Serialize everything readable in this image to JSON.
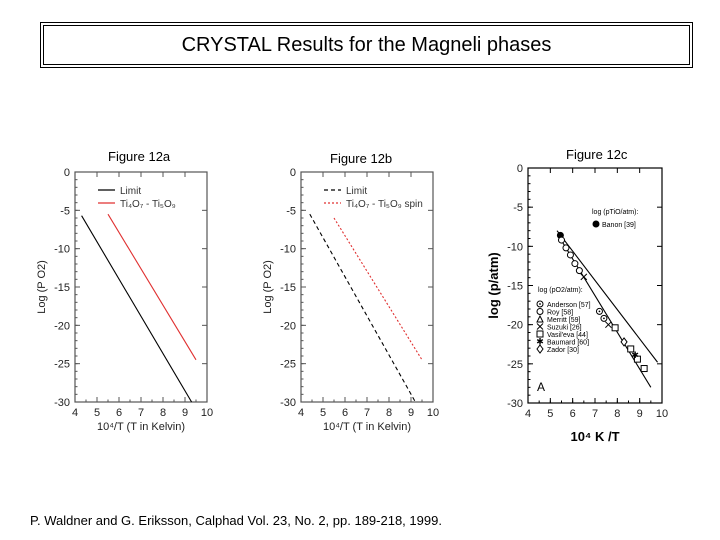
{
  "slide": {
    "title": "CRYSTAL Results for the Magneli phases",
    "fig_a_label": "Figure 12a",
    "fig_b_label": "Figure 12b",
    "fig_c_label": "Figure 12c",
    "caption": "P. Waldner and G. Eriksson, Calphad Vol. 23, No. 2, pp. 189-218, 1999."
  },
  "chart_data": [
    {
      "type": "line",
      "name": "Figure 12a",
      "xlabel": "10⁴/T (T in Kelvin)",
      "ylabel": "Log (P O2)",
      "xlim": [
        4,
        10
      ],
      "ylim": [
        -30,
        0
      ],
      "xticks": [
        "4",
        "5",
        "6",
        "7",
        "8",
        "9",
        "10"
      ],
      "yticks": [
        "0",
        "-5",
        "-10",
        "-15",
        "-20",
        "-25",
        "-30"
      ],
      "series": [
        {
          "name": "Limit",
          "legend": "Limit",
          "color": "#000000",
          "dash": "",
          "x": [
            4.3,
            9.3
          ],
          "y": [
            -5.7,
            -30
          ]
        },
        {
          "name": "Ti4O7 - Ti5O9",
          "legend": "Ti₄O₇ - Ti₅O₉",
          "color": "#e03030",
          "dash": "",
          "x": [
            5.5,
            9.5
          ],
          "y": [
            -5.5,
            -24.5
          ]
        }
      ]
    },
    {
      "type": "line",
      "name": "Figure 12b",
      "xlabel": "10⁴/T (T in Kelvin)",
      "ylabel": "Log (P O2)",
      "xlim": [
        4,
        10
      ],
      "ylim": [
        -30,
        0
      ],
      "xticks": [
        "4",
        "5",
        "6",
        "7",
        "8",
        "9",
        "10"
      ],
      "yticks": [
        "0",
        "-5",
        "-10",
        "-15",
        "-20",
        "-25",
        "-30"
      ],
      "series": [
        {
          "name": "Limit",
          "legend": "Limit",
          "color": "#000000",
          "dash": "4,3",
          "x": [
            4.4,
            9.2
          ],
          "y": [
            -5.5,
            -30
          ]
        },
        {
          "name": "Ti4O7 - Ti5O9 spin",
          "legend": "Ti₄O₇ - Ti₅O₉  spin",
          "color": "#e03030",
          "dash": "2,2",
          "x": [
            5.5,
            9.5
          ],
          "y": [
            -6,
            -24.5
          ]
        }
      ]
    },
    {
      "type": "scatter",
      "name": "Figure 12c",
      "xlabel": "10⁴ K /T",
      "ylabel": "log (p/atm)",
      "xlim": [
        4,
        10
      ],
      "ylim": [
        -30,
        0
      ],
      "xticks": [
        "4",
        "5",
        "6",
        "7",
        "8",
        "9",
        "10"
      ],
      "yticks": [
        "0",
        "-5",
        "-10",
        "-15",
        "-20",
        "-25",
        "-30"
      ],
      "panel_letter": "A",
      "legend_top_title": "log (pTiO/atm):",
      "legend_top_entries": [
        {
          "marker": "filled-circle",
          "label": "Banon [39]"
        }
      ],
      "legend_bottom_title": "log (pO2/atm):",
      "legend_bottom_entries": [
        {
          "marker": "circle-dot",
          "label": "Anderson [57]"
        },
        {
          "marker": "circle",
          "label": "Roy [58]"
        },
        {
          "marker": "triangle",
          "label": "Merritt [59]"
        },
        {
          "marker": "x",
          "label": "Suzuki [26]"
        },
        {
          "marker": "square",
          "label": "Vasil'eva [44]"
        },
        {
          "marker": "star",
          "label": "Baumard [60]"
        },
        {
          "marker": "diamond",
          "label": "Zador [30]"
        }
      ],
      "lines": [
        {
          "x": [
            5.3,
            9.8
          ],
          "y": [
            -8,
            -24.8
          ]
        },
        {
          "x": [
            5.4,
            9.5
          ],
          "y": [
            -8.8,
            -28
          ]
        }
      ],
      "points": [
        {
          "marker": "filled-circle",
          "x": 5.45,
          "y": -8.6
        },
        {
          "marker": "circle",
          "x": 5.5,
          "y": -9.2
        },
        {
          "marker": "circle",
          "x": 5.7,
          "y": -10.2
        },
        {
          "marker": "circle",
          "x": 5.9,
          "y": -11.1
        },
        {
          "marker": "circle",
          "x": 6.1,
          "y": -12.2
        },
        {
          "marker": "circle",
          "x": 6.3,
          "y": -13.1
        },
        {
          "marker": "x",
          "x": 6.5,
          "y": -13.9
        },
        {
          "marker": "circle-dot",
          "x": 7.2,
          "y": -18.3
        },
        {
          "marker": "circle-dot",
          "x": 7.4,
          "y": -19.2
        },
        {
          "marker": "x",
          "x": 7.6,
          "y": -20.0
        },
        {
          "marker": "square",
          "x": 7.9,
          "y": -20.4
        },
        {
          "marker": "square",
          "x": 8.6,
          "y": -23.1
        },
        {
          "marker": "square",
          "x": 8.9,
          "y": -24.4
        },
        {
          "marker": "square",
          "x": 9.2,
          "y": -25.6
        },
        {
          "marker": "diamond",
          "x": 8.3,
          "y": -22.2
        },
        {
          "marker": "star",
          "x": 8.8,
          "y": -23.9
        }
      ]
    }
  ]
}
